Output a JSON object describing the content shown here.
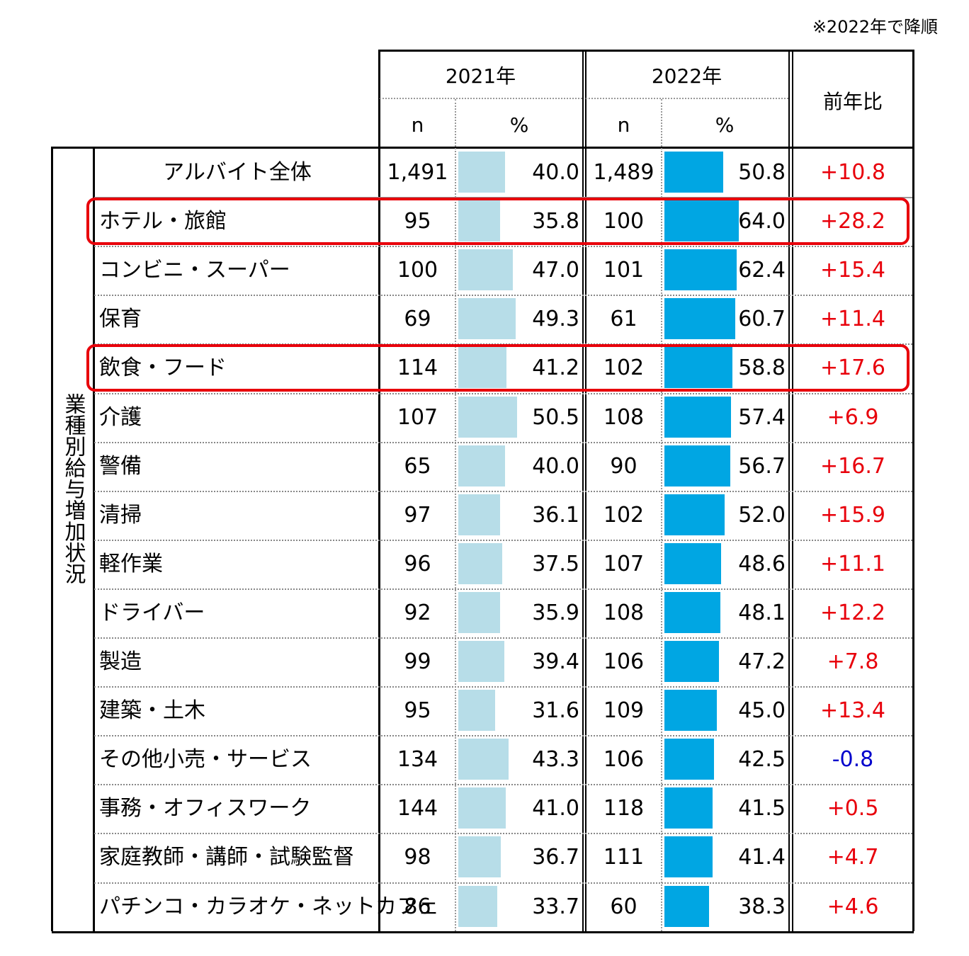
{
  "note": "※2022年で降順",
  "headers": {
    "year2021": "2021年",
    "year2022": "2022年",
    "n": "n",
    "pct": "%",
    "change": "前年比"
  },
  "side_label": "業種別給与増加状況",
  "colors": {
    "bar2021": "#b7dde8",
    "bar2022": "#00a6e3",
    "positive": "#e8000b",
    "negative": "#0000cc",
    "highlight": "#e8000b"
  },
  "chart_data": {
    "type": "bar",
    "note": "※2022年で降順",
    "categories": [
      "アルバイト全体",
      "ホテル・旅館",
      "コンビニ・スーパー",
      "保育",
      "飲食・フード",
      "介護",
      "警備",
      "清掃",
      "軽作業",
      "ドライバー",
      "製造",
      "建築・土木",
      "その他小売・サービス",
      "事務・オフィスワーク",
      "家庭教師・講師・試験監督",
      "パチンコ・カラオケ・ネットカフェ"
    ],
    "series": [
      {
        "name": "2021年",
        "n": [
          "1,491",
          "95",
          "100",
          "69",
          "114",
          "107",
          "65",
          "97",
          "96",
          "92",
          "99",
          "95",
          "134",
          "144",
          "98",
          "86"
        ],
        "values": [
          40.0,
          35.8,
          47.0,
          49.3,
          41.2,
          50.5,
          40.0,
          36.1,
          37.5,
          35.9,
          39.4,
          31.6,
          43.3,
          41.0,
          36.7,
          33.7
        ]
      },
      {
        "name": "2022年",
        "n": [
          "1,489",
          "100",
          "101",
          "61",
          "102",
          "108",
          "90",
          "102",
          "107",
          "108",
          "106",
          "109",
          "106",
          "118",
          "111",
          "60"
        ],
        "values": [
          50.8,
          64.0,
          62.4,
          60.7,
          58.8,
          57.4,
          56.7,
          52.0,
          48.6,
          48.1,
          47.2,
          45.0,
          42.5,
          41.5,
          41.4,
          38.3
        ]
      }
    ],
    "change": [
      "+10.8",
      "+28.2",
      "+15.4",
      "+11.4",
      "+17.6",
      "+6.9",
      "+16.7",
      "+15.9",
      "+11.1",
      "+12.2",
      "+7.8",
      "+13.4",
      "-0.8",
      "+0.5",
      "+4.7",
      "+4.6"
    ],
    "highlighted": [
      "ホテル・旅館",
      "飲食・フード"
    ]
  }
}
